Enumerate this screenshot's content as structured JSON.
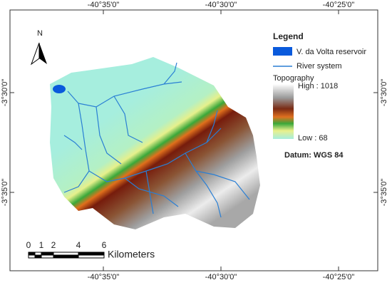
{
  "map": {
    "x_labels": [
      "-40°35'0\"",
      "-40°30'0\"",
      "-40°25'0\""
    ],
    "y_labels": [
      "-3°30'0\"",
      "-3°35'0\""
    ],
    "north": "N",
    "legend": {
      "title": "Legend",
      "items": [
        "V. da Volta reservoir",
        "River system"
      ],
      "topography_title": "Topography",
      "high": "High : 1018",
      "low": "Low : 68"
    },
    "datum": "Datum: WGS 84",
    "scale": {
      "ticks": [
        "0",
        "1",
        "2",
        "4",
        "6"
      ],
      "unit": "Kilometers"
    }
  }
}
